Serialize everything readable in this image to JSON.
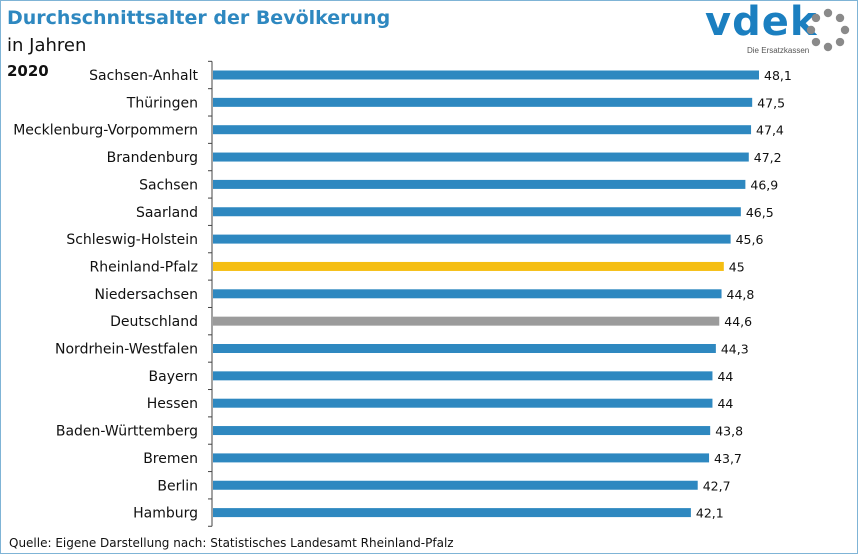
{
  "colors": {
    "title": "#2e88c0",
    "bar_default": "#2e88c0",
    "bar_highlight": "#f5be12",
    "bar_reference": "#9b9b9b",
    "axis": "#444444",
    "logo": "#1b7fc0",
    "logo_ring": "#8a8a8a"
  },
  "logo": {
    "word": "vdek",
    "tagline": "Die Ersatzkassen",
    "icon": "vdek-ring-logo-icon"
  },
  "source": "Quelle: Eigene Darstellung nach: Statistisches Landesamt Rheinland-Pfalz",
  "chart_data": {
    "type": "bar",
    "orientation": "horizontal",
    "title": "Durchschnittsalter der Bevölkerung",
    "subtitle": "in Jahren",
    "year": "2020",
    "xlim": [
      0,
      48.1
    ],
    "grid": false,
    "legend": "none",
    "categories": [
      "Sachsen-Anhalt",
      "Thüringen",
      "Mecklenburg-Vorpommern",
      "Brandenburg",
      "Sachsen",
      "Saarland",
      "Schleswig-Holstein",
      "Rheinland-Pfalz",
      "Niedersachsen",
      "Deutschland",
      "Nordrhein-Westfalen",
      "Bayern",
      "Hessen",
      "Baden-Württemberg",
      "Bremen",
      "Berlin",
      "Hamburg"
    ],
    "values": [
      48.1,
      47.5,
      47.4,
      47.2,
      46.9,
      46.5,
      45.6,
      45,
      44.8,
      44.6,
      44.3,
      44,
      44,
      43.8,
      43.7,
      42.7,
      42.1
    ],
    "value_labels": [
      "48,1",
      "47,5",
      "47,4",
      "47,2",
      "46,9",
      "46,5",
      "45,6",
      "45",
      "44,8",
      "44,6",
      "44,3",
      "44",
      "44",
      "43,8",
      "43,7",
      "42,7",
      "42,1"
    ],
    "highlight": {
      "Rheinland-Pfalz": "highlight",
      "Deutschland": "reference"
    }
  }
}
